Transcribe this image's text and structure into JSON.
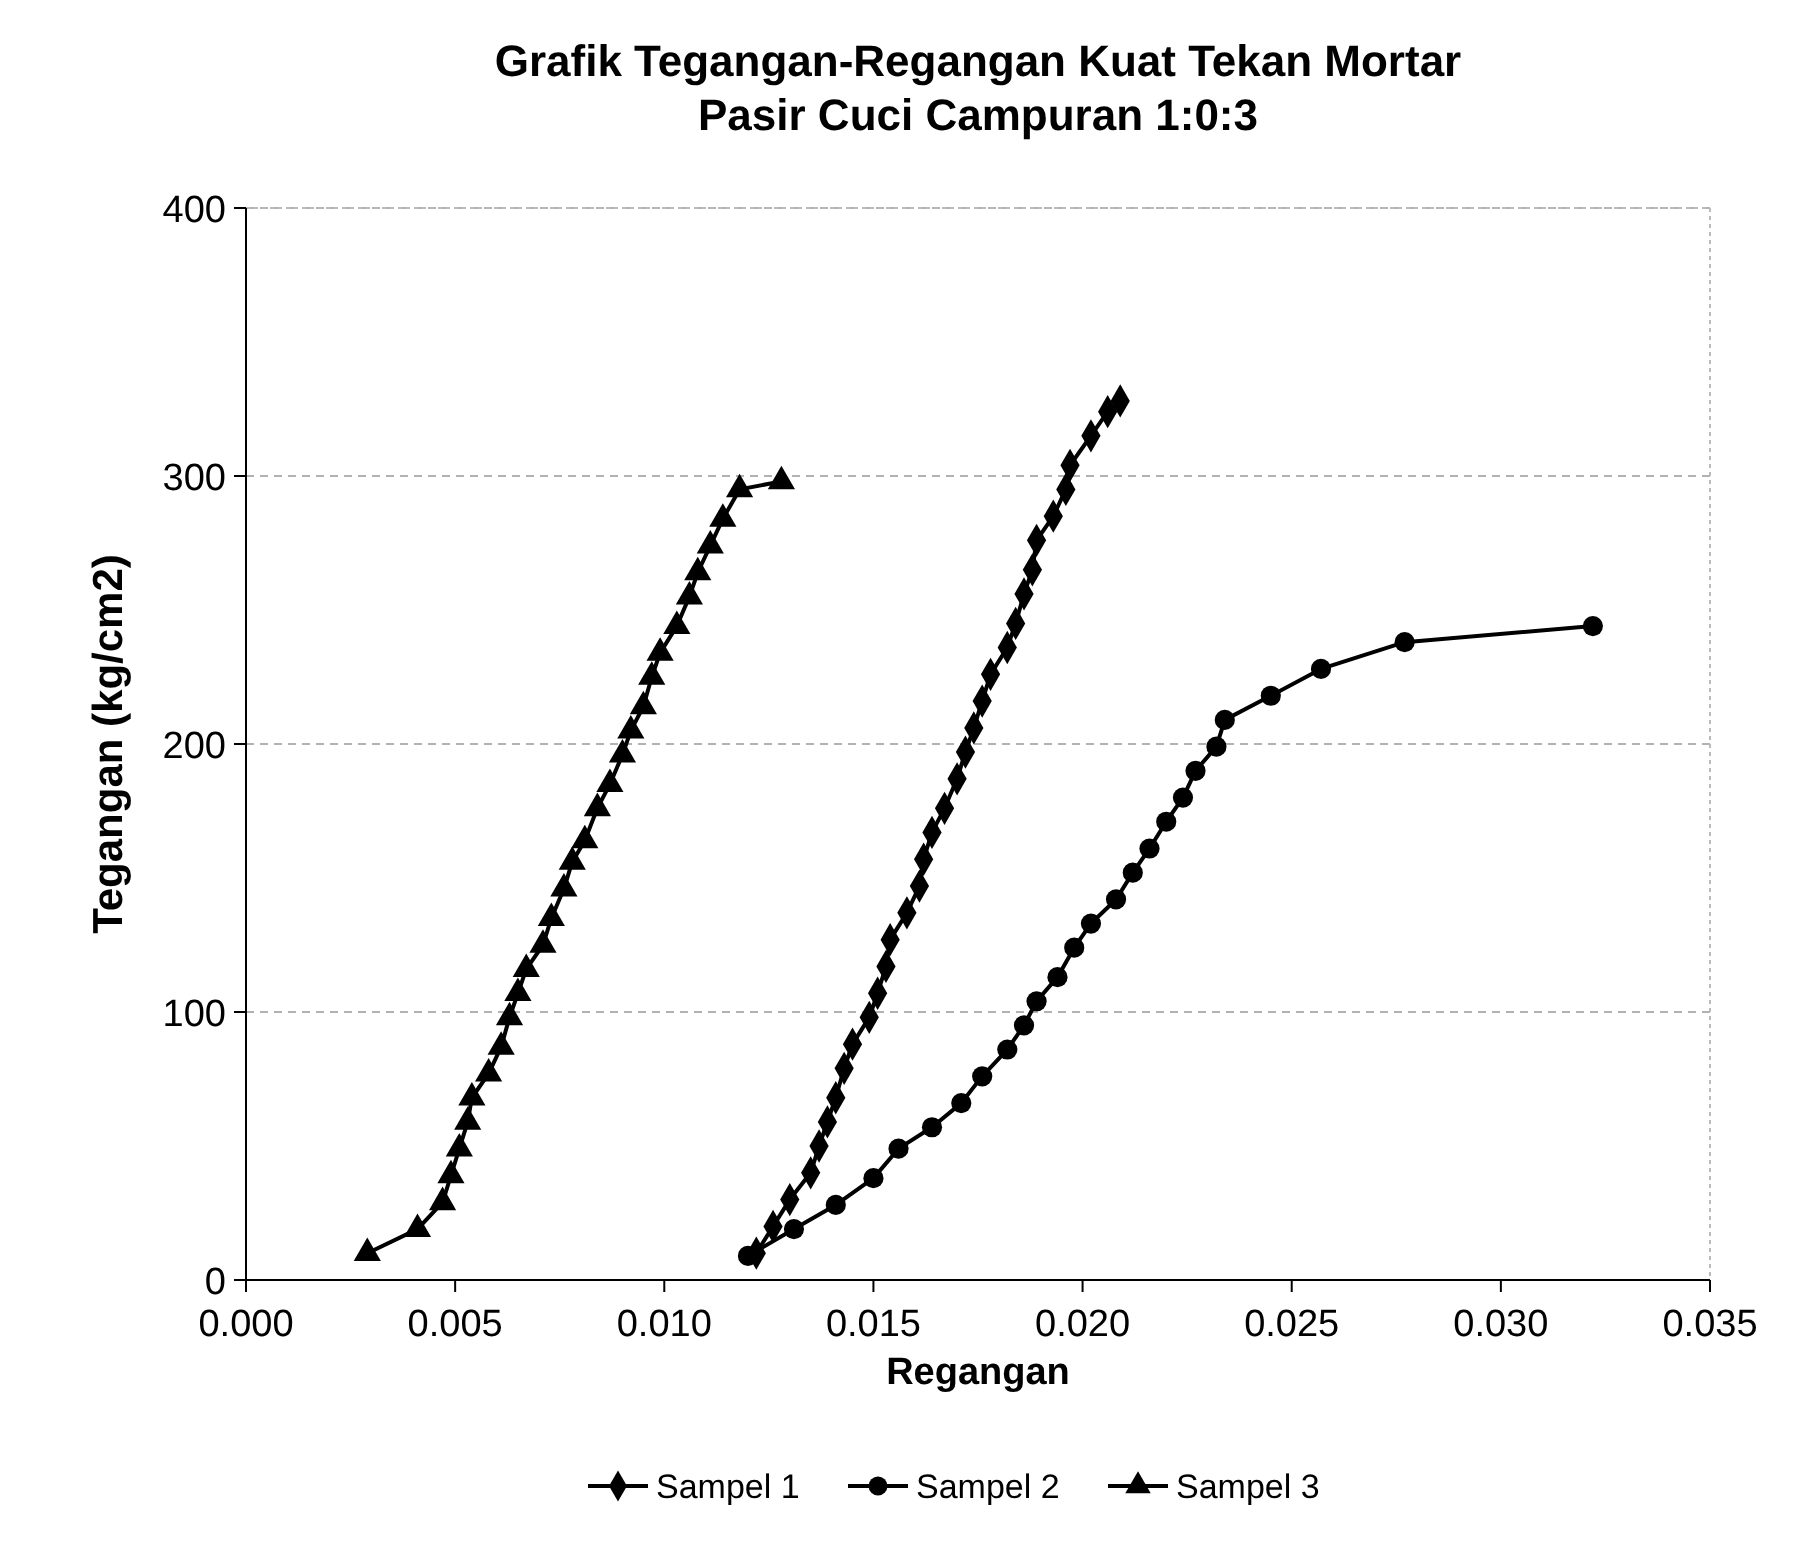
{
  "chart_data": {
    "type": "line",
    "title": "Grafik Tegangan-Regangan Kuat Tekan Mortar\nPasir Cuci Campuran 1:0:3",
    "xlabel": "Regangan",
    "ylabel": "Tegangan (kg/cm2)",
    "xlim": [
      0,
      0.035
    ],
    "xticks": [
      {
        "value": 0,
        "label": "0.000"
      },
      {
        "value": 0.005,
        "label": "0.005"
      },
      {
        "value": 0.01,
        "label": "0.010"
      },
      {
        "value": 0.015,
        "label": "0.015"
      },
      {
        "value": 0.02,
        "label": "0.020"
      },
      {
        "value": 0.025,
        "label": "0.025"
      },
      {
        "value": 0.03,
        "label": "0.030"
      },
      {
        "value": 0.035,
        "label": "0.035"
      }
    ],
    "ylim": [
      0,
      400
    ],
    "yticks": [
      0,
      100,
      200,
      300,
      400
    ],
    "grid": "y",
    "legend": "bottom",
    "series": [
      {
        "name": "Sampel 1",
        "color": "#000000",
        "marker": "diamond",
        "x": [
          0.0122,
          0.0126,
          0.013,
          0.0135,
          0.0137,
          0.0139,
          0.0141,
          0.0143,
          0.0145,
          0.0149,
          0.0151,
          0.0153,
          0.0154,
          0.0158,
          0.0161,
          0.0162,
          0.0164,
          0.0167,
          0.017,
          0.0172,
          0.0174,
          0.0176,
          0.0178,
          0.0182,
          0.0184,
          0.0186,
          0.0188,
          0.0189,
          0.0193,
          0.0196,
          0.0197,
          0.0202,
          0.0206,
          0.0209
        ],
        "values": [
          10,
          20,
          30,
          40,
          50,
          59,
          68,
          79,
          88,
          98,
          107,
          117,
          127,
          137,
          147,
          157,
          167,
          176,
          187,
          197,
          206,
          216,
          226,
          236,
          245,
          256,
          265,
          276,
          285,
          295,
          304,
          315,
          324,
          328
        ]
      },
      {
        "name": "Sampel 2",
        "color": "#000000",
        "marker": "circle",
        "x": [
          0.012,
          0.0131,
          0.0141,
          0.015,
          0.0156,
          0.0164,
          0.0171,
          0.0176,
          0.0182,
          0.0186,
          0.0189,
          0.0194,
          0.0198,
          0.0202,
          0.0208,
          0.0212,
          0.0216,
          0.022,
          0.0224,
          0.0227,
          0.0232,
          0.0234,
          0.0245,
          0.0257,
          0.0277,
          0.0322
        ],
        "values": [
          9,
          19,
          28,
          38,
          49,
          57,
          66,
          76,
          86,
          95,
          104,
          113,
          124,
          133,
          142,
          152,
          161,
          171,
          180,
          190,
          199,
          209,
          218,
          228,
          238,
          244
        ]
      },
      {
        "name": "Sampel 3",
        "color": "#000000",
        "marker": "triangle",
        "x": [
          0.0029,
          0.0041,
          0.0047,
          0.0049,
          0.0051,
          0.0053,
          0.0054,
          0.0058,
          0.0061,
          0.0063,
          0.0065,
          0.0067,
          0.0071,
          0.0073,
          0.0076,
          0.0078,
          0.0081,
          0.0084,
          0.0087,
          0.009,
          0.0092,
          0.0095,
          0.0097,
          0.0099,
          0.0103,
          0.0106,
          0.0108,
          0.0111,
          0.0114,
          0.0118,
          0.0128
        ],
        "values": [
          10,
          19,
          29,
          39,
          49,
          59,
          68,
          77,
          87,
          98,
          107,
          116,
          125,
          135,
          146,
          156,
          164,
          176,
          185,
          196,
          205,
          214,
          225,
          234,
          244,
          255,
          264,
          274,
          284,
          295,
          298
        ]
      }
    ]
  }
}
